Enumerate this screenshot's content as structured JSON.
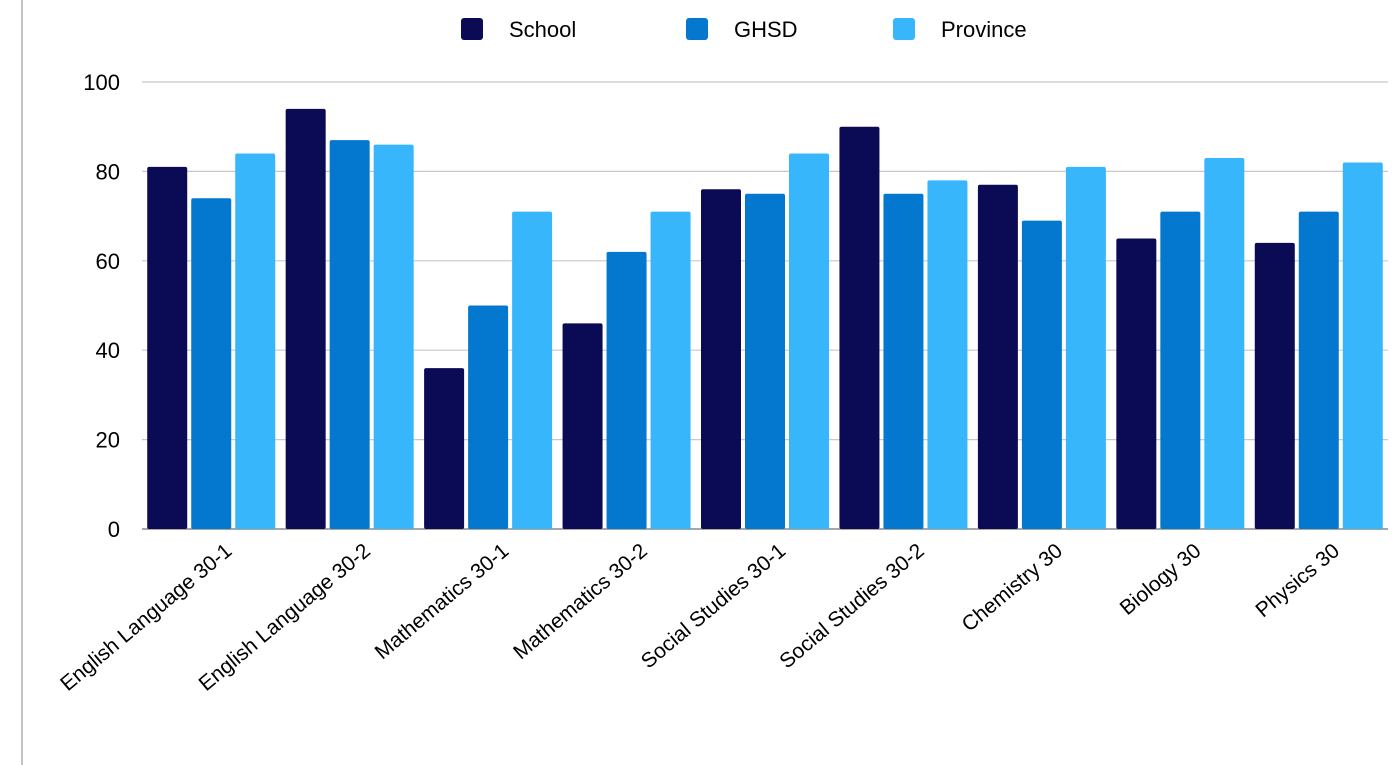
{
  "chart_data": {
    "type": "bar",
    "title": "",
    "xlabel": "",
    "ylabel": "",
    "ylim": [
      0,
      100
    ],
    "yticks": [
      0,
      20,
      40,
      60,
      80,
      100
    ],
    "grid": true,
    "legend_position": "top-center",
    "categories": [
      "English Language 30-1",
      "English Language 30-2",
      "Mathematics 30-1",
      "Mathematics 30-2",
      "Social Studies 30-1",
      "Social Studies 30-2",
      "Chemistry 30",
      "Biology 30",
      "Physics 30"
    ],
    "series": [
      {
        "name": "School",
        "color": "#0a0a55",
        "values": [
          81,
          94,
          36,
          46,
          76,
          90,
          77,
          65,
          64
        ]
      },
      {
        "name": "GHSD",
        "color": "#0478cf",
        "values": [
          74,
          87,
          50,
          62,
          75,
          75,
          69,
          71,
          71
        ]
      },
      {
        "name": "Province",
        "color": "#38b6fc",
        "values": [
          84,
          86,
          71,
          71,
          84,
          78,
          81,
          83,
          82
        ]
      }
    ]
  }
}
